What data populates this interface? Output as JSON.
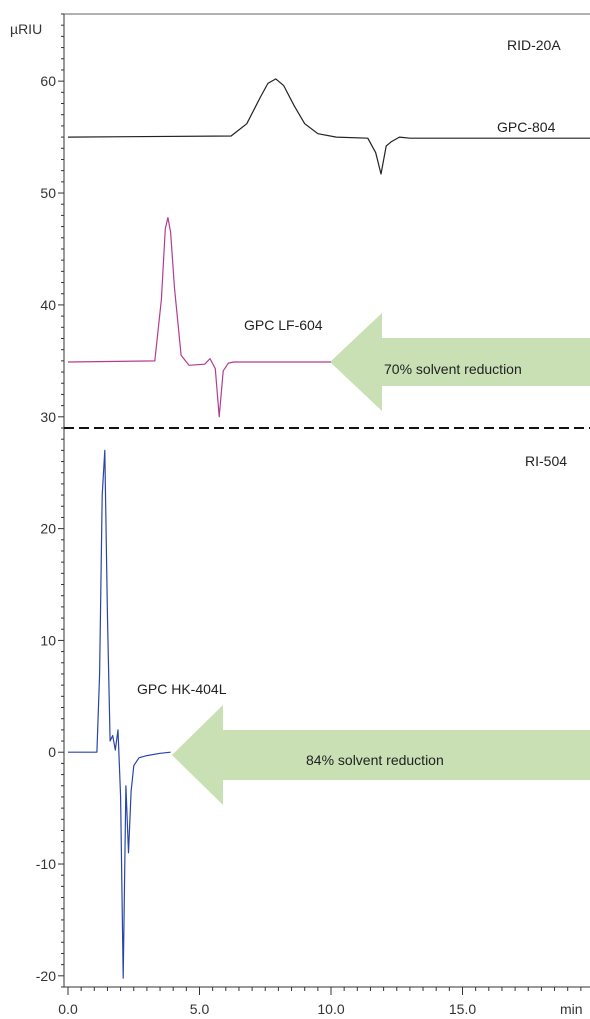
{
  "chart_data": {
    "type": "line",
    "x_axis": {
      "unit": "min",
      "range": [
        0,
        20
      ],
      "ticks": [
        0,
        5,
        10,
        15
      ],
      "tick_labels": [
        "0.0",
        "5.0",
        "10.0",
        "15.0"
      ]
    },
    "panels": [
      {
        "id": "top",
        "y_unit": "µRIU",
        "y_range": [
          29,
          66
        ],
        "y_ticks": [
          30,
          40,
          50,
          60
        ],
        "y_tick_labels": [
          "30",
          "40",
          "50",
          "60"
        ],
        "detector_label": "RID-20A",
        "series": [
          {
            "name": "GPC-804",
            "color": "#222222",
            "x": [
              0,
              6.2,
              6.8,
              7.3,
              7.6,
              7.9,
              8.2,
              8.6,
              9.0,
              9.5,
              10.2,
              11.4,
              11.7,
              11.9,
              12.1,
              12.3,
              12.6,
              13.0,
              20
            ],
            "y": [
              55,
              55.1,
              56.2,
              58.5,
              59.8,
              60.2,
              59.6,
              57.8,
              56.2,
              55.3,
              55,
              54.9,
              53.6,
              51.7,
              54.2,
              54.6,
              55,
              54.9,
              54.9
            ]
          },
          {
            "name": "GPC LF-604",
            "color": "#b43c8f",
            "x": [
              0,
              3.3,
              3.55,
              3.7,
              3.8,
              3.9,
              4.05,
              4.3,
              4.6,
              5.2,
              5.4,
              5.6,
              5.75,
              5.9,
              6.1,
              6.3,
              6.6,
              10.0
            ],
            "y": [
              34.9,
              35,
              40.5,
              46.8,
              47.8,
              46.5,
              41.5,
              35.5,
              34.6,
              34.7,
              35.2,
              34.3,
              30,
              34.1,
              34.8,
              34.9,
              34.9,
              34.9
            ]
          }
        ],
        "annotation": {
          "text": "70% solvent reduction"
        }
      },
      {
        "id": "bottom",
        "y_range": [
          -21,
          29
        ],
        "y_ticks": [
          -20,
          -10,
          0,
          10,
          20
        ],
        "y_tick_labels": [
          "-20",
          "-10",
          "0",
          "10",
          "20"
        ],
        "detector_label": "RI-504",
        "series": [
          {
            "name": "GPC HK-404L",
            "color": "#2a45a8",
            "x": [
              0,
              1.1,
              1.2,
              1.3,
              1.4,
              1.5,
              1.6,
              1.7,
              1.8,
              1.9,
              2.0,
              2.1,
              2.2,
              2.3,
              2.4,
              2.5,
              2.7,
              3.0,
              3.5,
              3.9
            ],
            "y": [
              0,
              0,
              7,
              23,
              27,
              12,
              1,
              1.5,
              0.2,
              2,
              -4,
              -20.2,
              -3,
              -9,
              -3.5,
              -1.2,
              -0.5,
              -0.3,
              -0.1,
              0
            ]
          }
        ],
        "annotation": {
          "text": "84% solvent reduction"
        }
      }
    ]
  }
}
